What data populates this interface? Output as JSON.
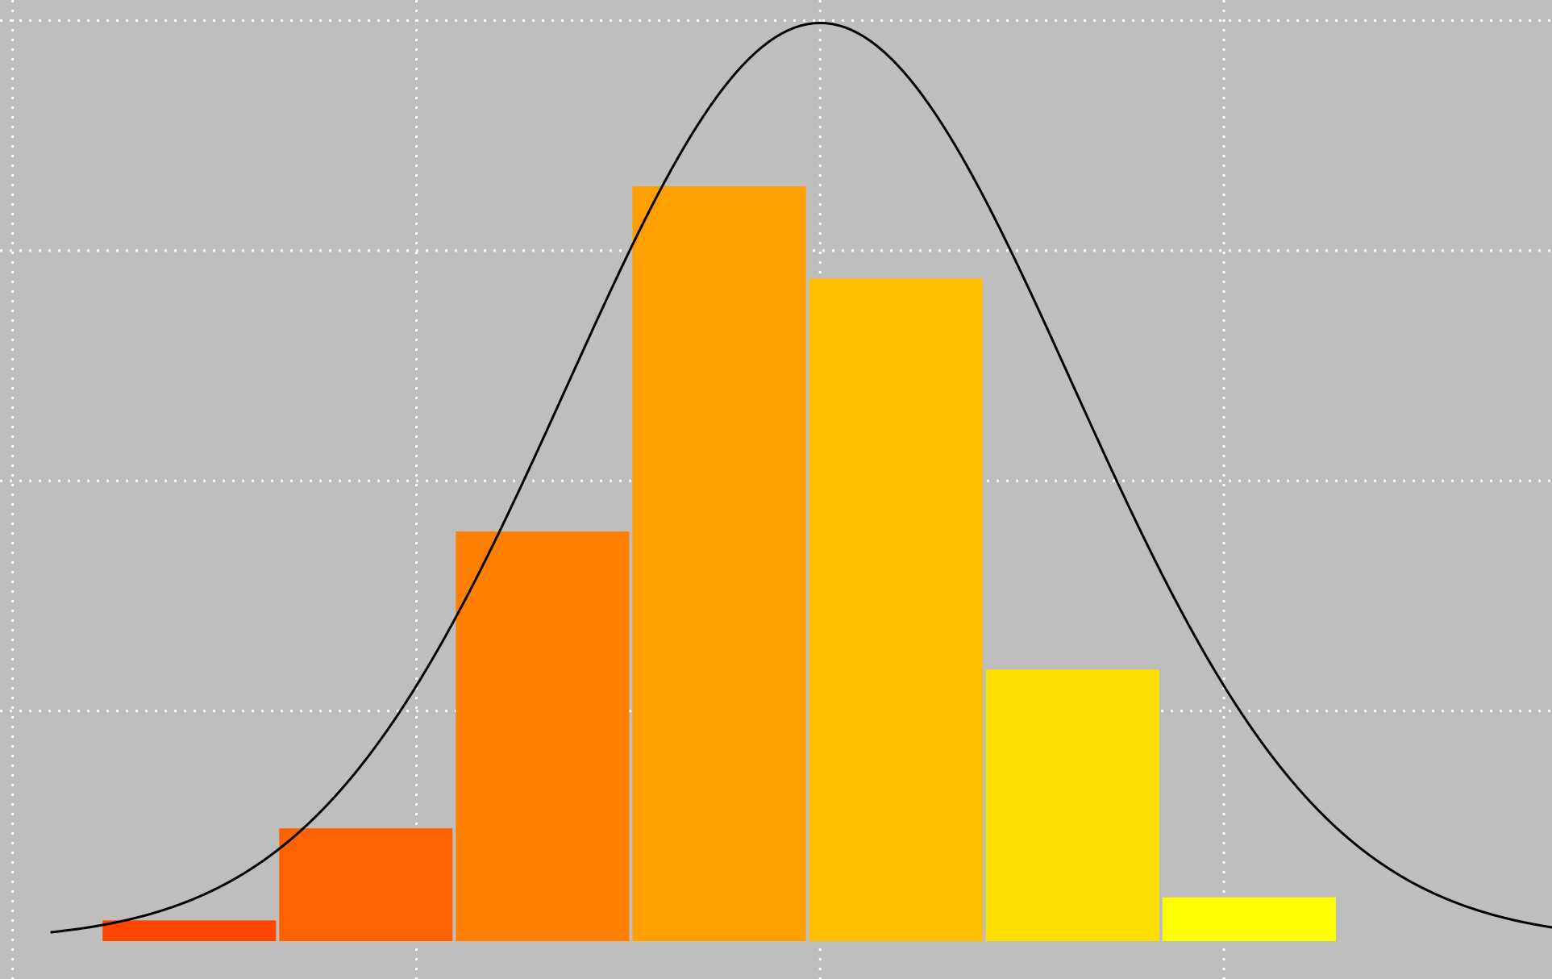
{
  "chart_data": {
    "type": "bar",
    "title": "",
    "xlabel": "",
    "ylabel": "",
    "grid": true,
    "legend": "none",
    "background_color": "#bebebe",
    "grid_color": "#ffffff",
    "xlim": [
      -3.25,
      2.9
    ],
    "ylim": [
      0,
      0.397
    ],
    "bars": [
      {
        "x0": -2.85,
        "x1": -2.15,
        "height": 0.009,
        "color": "#ff4500"
      },
      {
        "x0": -2.15,
        "x1": -1.45,
        "height": 0.049,
        "color": "#ff6200"
      },
      {
        "x0": -1.45,
        "x1": -0.75,
        "height": 0.178,
        "color": "#ff8000"
      },
      {
        "x0": -0.75,
        "x1": -0.05,
        "height": 0.328,
        "color": "#ffa000"
      },
      {
        "x0": -0.05,
        "x1": 0.65,
        "height": 0.288,
        "color": "#ffbf00"
      },
      {
        "x0": 0.65,
        "x1": 1.35,
        "height": 0.118,
        "color": "#ffdf00"
      },
      {
        "x0": 1.35,
        "x1": 2.05,
        "height": 0.019,
        "color": "#ffff00"
      }
    ],
    "curve": {
      "kind": "normal_pdf",
      "mean": 0,
      "sd": 1,
      "x_range": [
        -3.05,
        3.1
      ],
      "color": "#000000"
    }
  }
}
